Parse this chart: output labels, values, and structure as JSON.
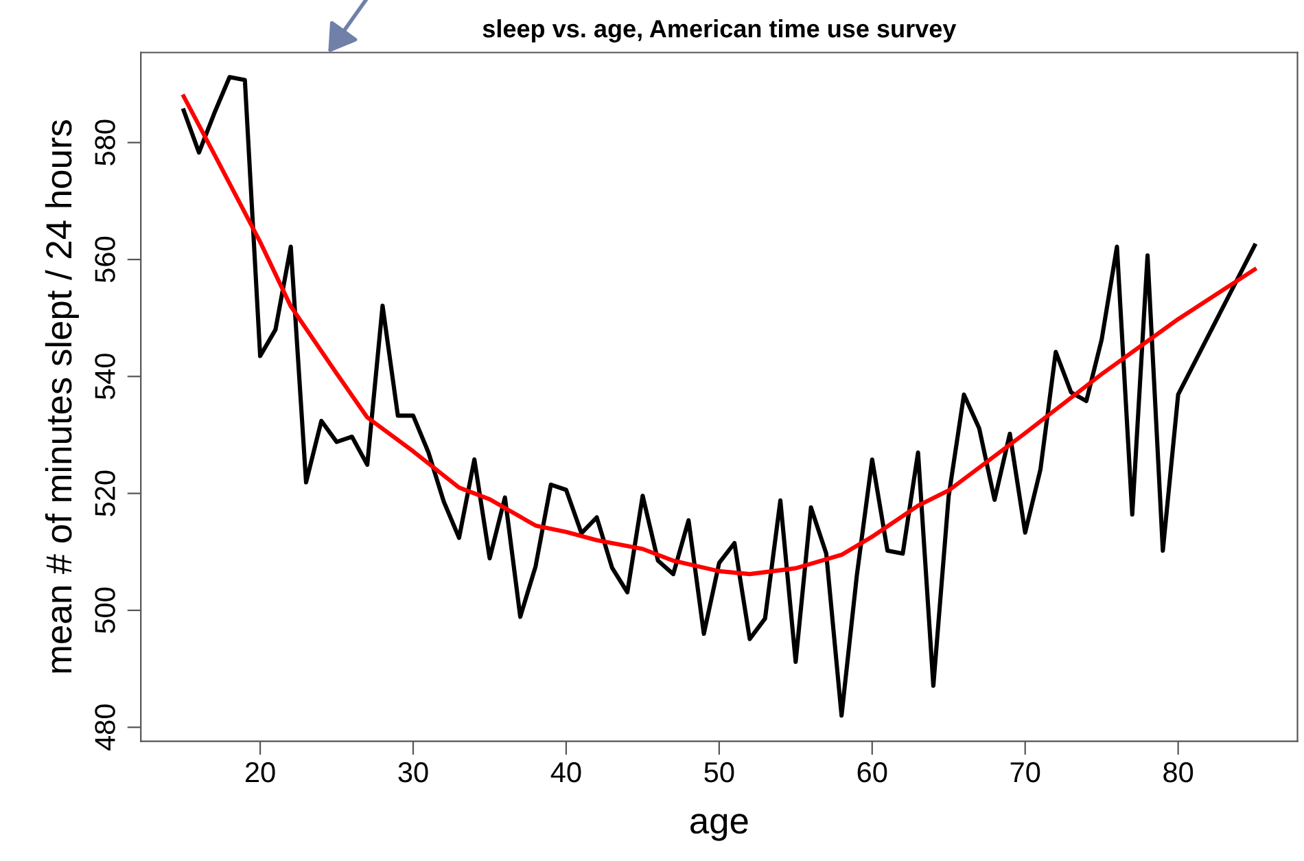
{
  "chart_data": {
    "type": "line",
    "title": "sleep vs. age, American time use survey",
    "xlabel": "age",
    "ylabel": "mean # of minutes slept / 24 hours",
    "series": [
      {
        "color": "#000000",
        "x": [
          15,
          16,
          17,
          18,
          19,
          20,
          21,
          22,
          23,
          24,
          25,
          26,
          27,
          28,
          29,
          30,
          31,
          32,
          33,
          34,
          35,
          36,
          37,
          38,
          39,
          40,
          41,
          42,
          43,
          44,
          45,
          46,
          47,
          48,
          49,
          50,
          51,
          52,
          53,
          54,
          55,
          56,
          57,
          58,
          59,
          60,
          61,
          62,
          63,
          64,
          65,
          66,
          67,
          68,
          69,
          70,
          71,
          72,
          73,
          74,
          75,
          76,
          77,
          78,
          79,
          80,
          85
        ],
        "values": [
          585.5,
          578.3,
          585,
          591.2,
          590.7,
          543.5,
          548,
          562.2,
          521.9,
          532.4,
          528.8,
          529.7,
          524.9,
          552.1,
          533.3,
          533.3,
          527,
          518.6,
          512.4,
          525.8,
          508.9,
          519.3,
          498.9,
          507.5,
          521.5,
          520.6,
          513.2,
          515.9,
          507.3,
          503.1,
          519.6,
          508.5,
          506.2,
          515.4,
          496,
          508.1,
          511.5,
          495.1,
          498.6,
          518.8,
          491.2,
          517.6,
          509.7,
          482,
          506,
          525.8,
          510.2,
          509.7,
          527,
          487.1,
          519.5,
          536.9,
          531.1,
          518.9,
          530.2,
          513.3,
          524.1,
          544.2,
          537.3,
          535.8,
          546.3,
          562.2,
          516.4,
          560.7,
          510.2,
          536.9,
          562.4
        ]
      },
      {
        "type": "line",
        "color": "#ff0000",
        "x": [
          15,
          17,
          20,
          22,
          25,
          27,
          30,
          33,
          35,
          38,
          40,
          42,
          45,
          47,
          50,
          52,
          55,
          58,
          60,
          63,
          65,
          70,
          75,
          80,
          85
        ],
        "values": [
          587.9,
          578,
          563,
          552,
          540.5,
          533,
          527.2,
          521,
          519,
          514.5,
          513.4,
          512,
          510.5,
          508.5,
          506.7,
          506.2,
          507.2,
          509.5,
          512.6,
          517.9,
          520.5,
          530.3,
          540.4,
          549.8,
          558.3
        ]
      }
    ],
    "xlim": [
      12.2,
      87.8
    ],
    "ylim": [
      477.6,
      595.4
    ],
    "xticks": [
      20,
      30,
      40,
      50,
      60,
      70,
      80
    ],
    "yticks": [
      480,
      500,
      520,
      540,
      560,
      580
    ],
    "grid": false,
    "marker": "none",
    "line_style": "solid"
  }
}
